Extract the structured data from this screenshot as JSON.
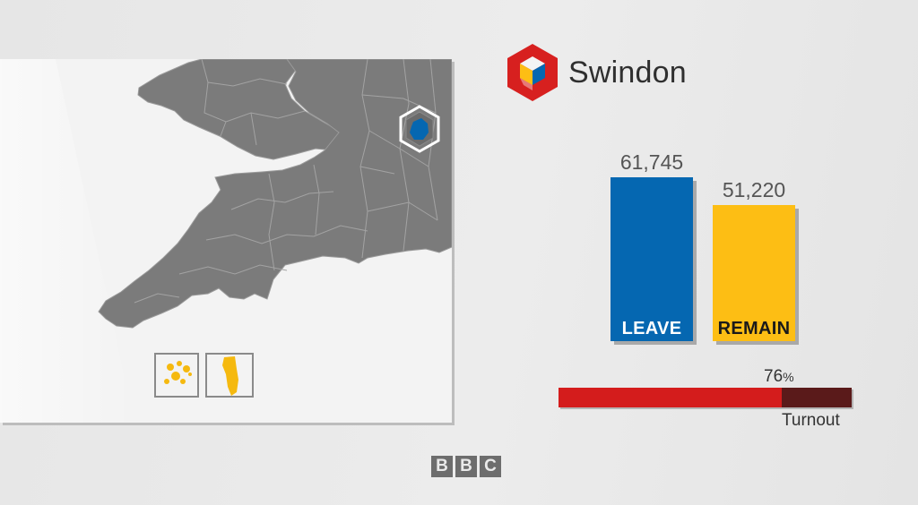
{
  "area": {
    "name": "Swindon"
  },
  "chart_data": {
    "type": "bar",
    "categories": [
      "LEAVE",
      "REMAIN"
    ],
    "values": [
      61745,
      51220
    ],
    "value_labels": [
      "61,745",
      "51,220"
    ],
    "colors": [
      "#0567b1",
      "#fdbe14"
    ],
    "label_colors": [
      "#ffffff",
      "#1a1a1a"
    ],
    "title": "",
    "xlabel": "",
    "ylabel": "",
    "ylim": [
      0,
      61745
    ],
    "grid": false
  },
  "turnout": {
    "value": 76,
    "value_label": "76",
    "unit": "%",
    "label": "Turnout",
    "fill_color": "#d41c1c",
    "track_color": "#5a1a1a"
  },
  "map": {
    "highlight_color": "#0567b1",
    "inset_color": "#f5b90f",
    "land_color": "#7b7b7b"
  },
  "footer": {
    "logo_letters": [
      "B",
      "B",
      "C"
    ]
  }
}
